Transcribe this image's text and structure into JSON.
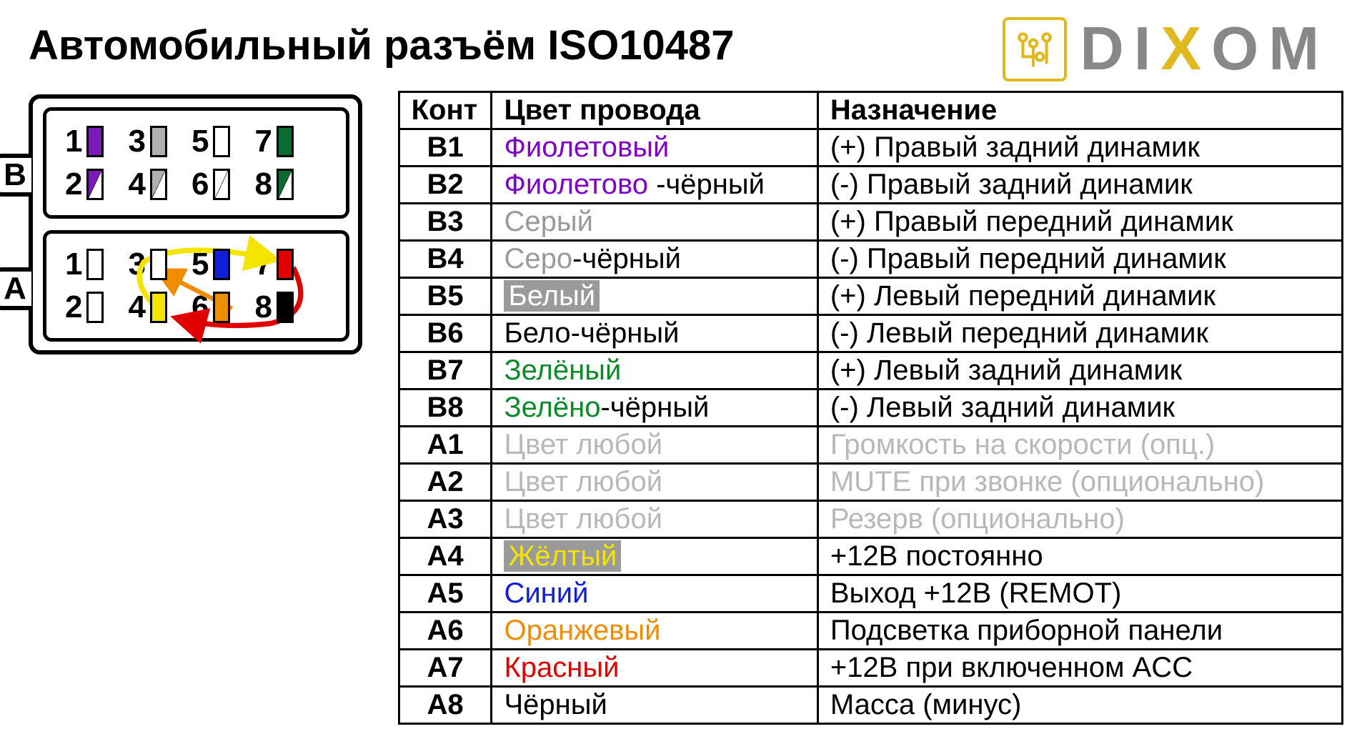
{
  "title": "Автомобильный разъём ISO10487",
  "logo": {
    "letters": [
      "D",
      "I",
      "X",
      "O",
      "M"
    ],
    "accent_index": 2,
    "text_color": "#888888",
    "accent_color": "#e0b820"
  },
  "connector": {
    "block_b": {
      "label": "B",
      "rows": [
        [
          {
            "n": "1",
            "fill": "#7a1ab8",
            "diag": false
          },
          {
            "n": "3",
            "fill": "#b0b0b0",
            "diag": false
          },
          {
            "n": "5",
            "fill": "#ffffff",
            "diag": false
          },
          {
            "n": "7",
            "fill": "#0c6b2f",
            "diag": false
          }
        ],
        [
          {
            "n": "2",
            "fill": "#7a1ab8",
            "diag": true
          },
          {
            "n": "4",
            "fill": "#b0b0b0",
            "diag": true
          },
          {
            "n": "6",
            "fill": "#ffffff",
            "diag": true
          },
          {
            "n": "8",
            "fill": "#0c6b2f",
            "diag": true
          }
        ]
      ]
    },
    "block_a": {
      "label": "A",
      "rows": [
        [
          {
            "n": "1",
            "fill": "#ffffff",
            "diag": false
          },
          {
            "n": "3",
            "fill": "#ffffff",
            "diag": false
          },
          {
            "n": "5",
            "fill": "#1020d8",
            "diag": false
          },
          {
            "n": "7",
            "fill": "#e00000",
            "diag": false
          }
        ],
        [
          {
            "n": "2",
            "fill": "#ffffff",
            "diag": false
          },
          {
            "n": "4",
            "fill": "#f5e400",
            "diag": false
          },
          {
            "n": "6",
            "fill": "#f08c00",
            "diag": false
          },
          {
            "n": "8",
            "fill": "#000000",
            "diag": false
          }
        ]
      ]
    },
    "arrows": {
      "yellow": "#f5e400",
      "orange": "#f08c00",
      "red": "#e00000"
    }
  },
  "table": {
    "headers": {
      "pin": "Конт",
      "wire": "Цвет провода",
      "purpose": "Назначение"
    },
    "rows": [
      {
        "pin": "B1",
        "wire": [
          {
            "t": "Фиолетовый",
            "c": "#8000c8"
          }
        ],
        "purpose": "(+) Правый задний динамик",
        "pc": "#000"
      },
      {
        "pin": "B2",
        "wire": [
          {
            "t": "Фиолетово",
            "c": "#8000c8"
          },
          {
            "t": " -чёрный",
            "c": "#000"
          }
        ],
        "purpose": "(-)  Правый задний динамик",
        "pc": "#000"
      },
      {
        "pin": "B3",
        "wire": [
          {
            "t": "Серый",
            "c": "#9a9a9a"
          }
        ],
        "purpose": "(+) Правый передний динамик",
        "pc": "#000"
      },
      {
        "pin": "B4",
        "wire": [
          {
            "t": "Серо",
            "c": "#9a9a9a"
          },
          {
            "t": "-чёрный",
            "c": "#000"
          }
        ],
        "purpose": "(-)  Правый передний динамик",
        "pc": "#000"
      },
      {
        "pin": "B5",
        "wire": [
          {
            "t": "Белый",
            "c": "#fff",
            "bg": "#9a9a9a"
          }
        ],
        "purpose": "(+) Левый передний динамик",
        "pc": "#000"
      },
      {
        "pin": "B6",
        "wire": [
          {
            "t": "Бело-чёрный",
            "c": "#000"
          }
        ],
        "purpose": "(-)  Левый передний динамик",
        "pc": "#000"
      },
      {
        "pin": "B7",
        "wire": [
          {
            "t": "Зелёный",
            "c": "#0c8a2a"
          }
        ],
        "purpose": "(+) Левый задний динамик",
        "pc": "#000"
      },
      {
        "pin": "B8",
        "wire": [
          {
            "t": "Зелёно",
            "c": "#0c8a2a"
          },
          {
            "t": "-чёрный",
            "c": "#000"
          }
        ],
        "purpose": "(-)  Левый задний динамик",
        "pc": "#000"
      },
      {
        "pin": "A1",
        "wire": [
          {
            "t": "Цвет любой",
            "c": "#b8b8b8"
          }
        ],
        "purpose": "Громкость на скорости (опц.)",
        "pc": "#b8b8b8"
      },
      {
        "pin": "A2",
        "wire": [
          {
            "t": "Цвет любой",
            "c": "#b8b8b8"
          }
        ],
        "purpose": "MUTE при звонке (опционально)",
        "pc": "#b8b8b8"
      },
      {
        "pin": "A3",
        "wire": [
          {
            "t": "Цвет любой",
            "c": "#b8b8b8"
          }
        ],
        "purpose": "Резерв (опционально)",
        "pc": "#b8b8b8"
      },
      {
        "pin": "A4",
        "wire": [
          {
            "t": "Жёлтый",
            "c": "#f5e400",
            "bg": "#9a9a9a"
          }
        ],
        "purpose": "+12В постоянно",
        "pc": "#000"
      },
      {
        "pin": "A5",
        "wire": [
          {
            "t": "Синий",
            "c": "#1020d8"
          }
        ],
        "purpose": "Выход +12В (REMOT)",
        "pc": "#000"
      },
      {
        "pin": "A6",
        "wire": [
          {
            "t": "Оранжевый",
            "c": "#f08c00"
          }
        ],
        "purpose": "Подсветка приборной панели",
        "pc": "#000"
      },
      {
        "pin": "A7",
        "wire": [
          {
            "t": "Красный",
            "c": "#e00000"
          }
        ],
        "purpose": "+12В при включенном ACC",
        "pc": "#000"
      },
      {
        "pin": "A8",
        "wire": [
          {
            "t": "Чёрный",
            "c": "#000"
          }
        ],
        "purpose": "Масса (минус)",
        "pc": "#000"
      }
    ]
  }
}
